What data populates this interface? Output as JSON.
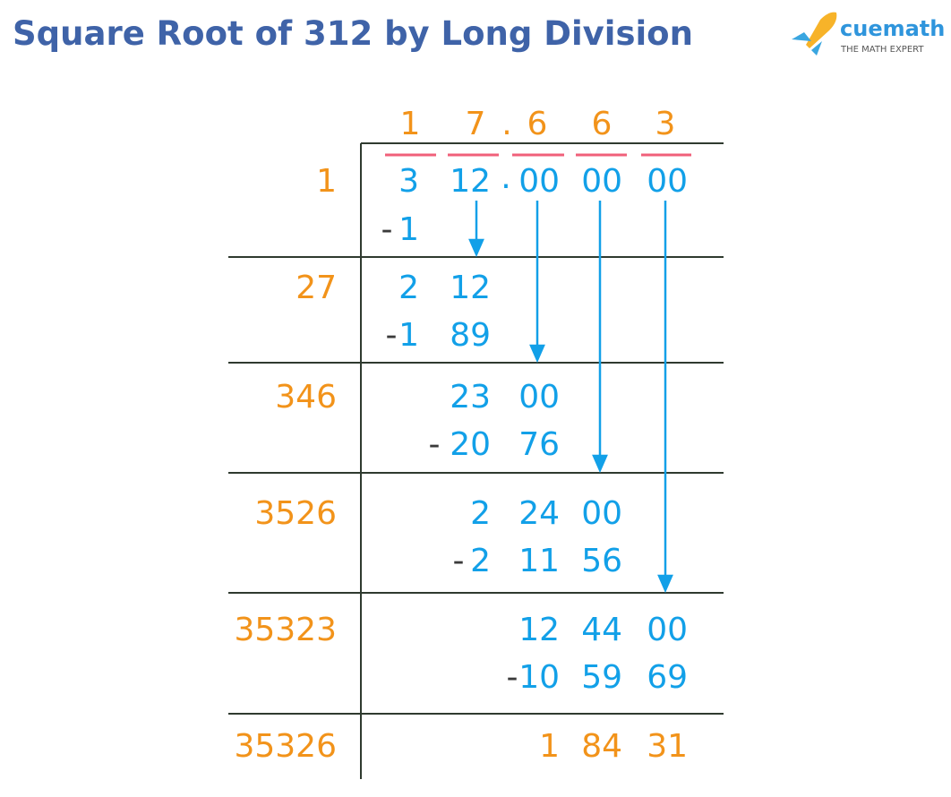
{
  "title": "Square Root of 312 by Long Division",
  "logo": {
    "brand": "cuemath",
    "tagline": "THE MATH EXPERT"
  },
  "quotient": [
    "1",
    "7",
    ".",
    "6",
    "6",
    "3"
  ],
  "steps": [
    {
      "divisor": "1",
      "lines": [
        [
          "3",
          "12",
          ".",
          "00",
          "00",
          "00"
        ],
        [
          "-",
          "1"
        ]
      ]
    },
    {
      "divisor": "27",
      "lines": [
        [
          "2",
          "12"
        ],
        [
          "-",
          "1",
          "89"
        ]
      ]
    },
    {
      "divisor": "346",
      "lines": [
        [
          "23",
          "00"
        ],
        [
          "-",
          "20",
          "76"
        ]
      ]
    },
    {
      "divisor": "3526",
      "lines": [
        [
          "2",
          "24",
          "00"
        ],
        [
          "-",
          "2",
          "11",
          "56"
        ]
      ]
    },
    {
      "divisor": "35323",
      "lines": [
        [
          "12",
          "44",
          "00"
        ],
        [
          "-",
          "10",
          "59",
          "69"
        ]
      ]
    }
  ],
  "remainder": {
    "divisor": "35326",
    "digits": [
      "1",
      "84",
      "31"
    ]
  }
}
